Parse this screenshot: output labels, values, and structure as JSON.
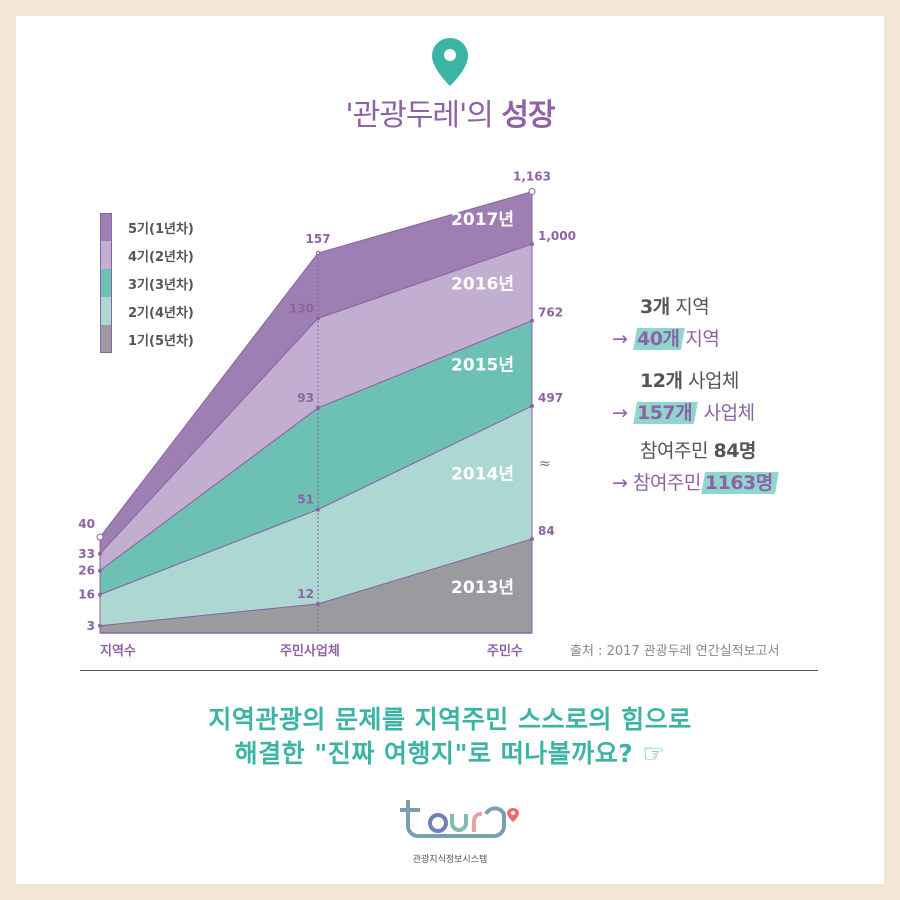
{
  "title": {
    "prefix": "'관광두레'의 ",
    "bold": "성장"
  },
  "chart_data": {
    "type": "area",
    "stacked": true,
    "categories": [
      "지역수",
      "주민사업체",
      "주민수"
    ],
    "cumulative_labels": [
      [
        "3",
        "16",
        "26",
        "33",
        "40"
      ],
      [
        "12",
        "51",
        "93",
        "130",
        "157"
      ],
      [
        "84",
        "497",
        "762",
        "1,000",
        "1,163"
      ]
    ],
    "series": [
      {
        "name": "1기(5년차)",
        "year_label": "2013년",
        "values": [
          3,
          12,
          84
        ],
        "color": "#9a9b9f"
      },
      {
        "name": "2기(4년차)",
        "year_label": "2014년",
        "values": [
          13,
          39,
          413
        ],
        "color": "#acd7d3"
      },
      {
        "name": "3기(3년차)",
        "year_label": "2015년",
        "values": [
          10,
          42,
          265
        ],
        "color": "#6cc0b4"
      },
      {
        "name": "4기(2년차)",
        "year_label": "2016년",
        "values": [
          7,
          37,
          238
        ],
        "color": "#c2aed1"
      },
      {
        "name": "5기(1년차)",
        "year_label": "2017년",
        "values": [
          7,
          27,
          163
        ],
        "color": "#9d7fb3"
      }
    ],
    "broken_axis": "주민수",
    "legend": "top-left",
    "grid": false,
    "line_color": "#8e63a6"
  },
  "legend_order": [
    "5기(1년차)",
    "4기(2년차)",
    "3기(3년차)",
    "2기(4년차)",
    "1기(5년차)"
  ],
  "notes": [
    {
      "before_bold": "3개",
      "before_rest": " 지역",
      "arrow": "→",
      "after_bold": "40개",
      "after_rest": "지역"
    },
    {
      "before_bold": "12개",
      "before_rest": " 사업체",
      "arrow": "→",
      "after_bold": "157개",
      "after_rest": " 사업체"
    },
    {
      "before_plain": "참여주민 ",
      "before_bold": "84명",
      "arrow": "→",
      "after_plain": "참여주민",
      "after_bold": "1163명"
    }
  ],
  "source": "출처 : 2017 관광두레 연간실적보고서",
  "bottom": {
    "line1": "지역관광의 문제를 지역주민 스스로의 힘으로",
    "line2": "해결한 \"진짜 여행지\"로 떠나볼까요?",
    "pointer_icon": "☞"
  },
  "logo": {
    "text": "tour9",
    "subtitle": "관광지식정보시스템"
  },
  "colors": {
    "frame": "#f3e6d6",
    "accent_purple": "#8e63a6",
    "accent_teal": "#3cb4a4",
    "highlight": "#8fd6cd"
  }
}
